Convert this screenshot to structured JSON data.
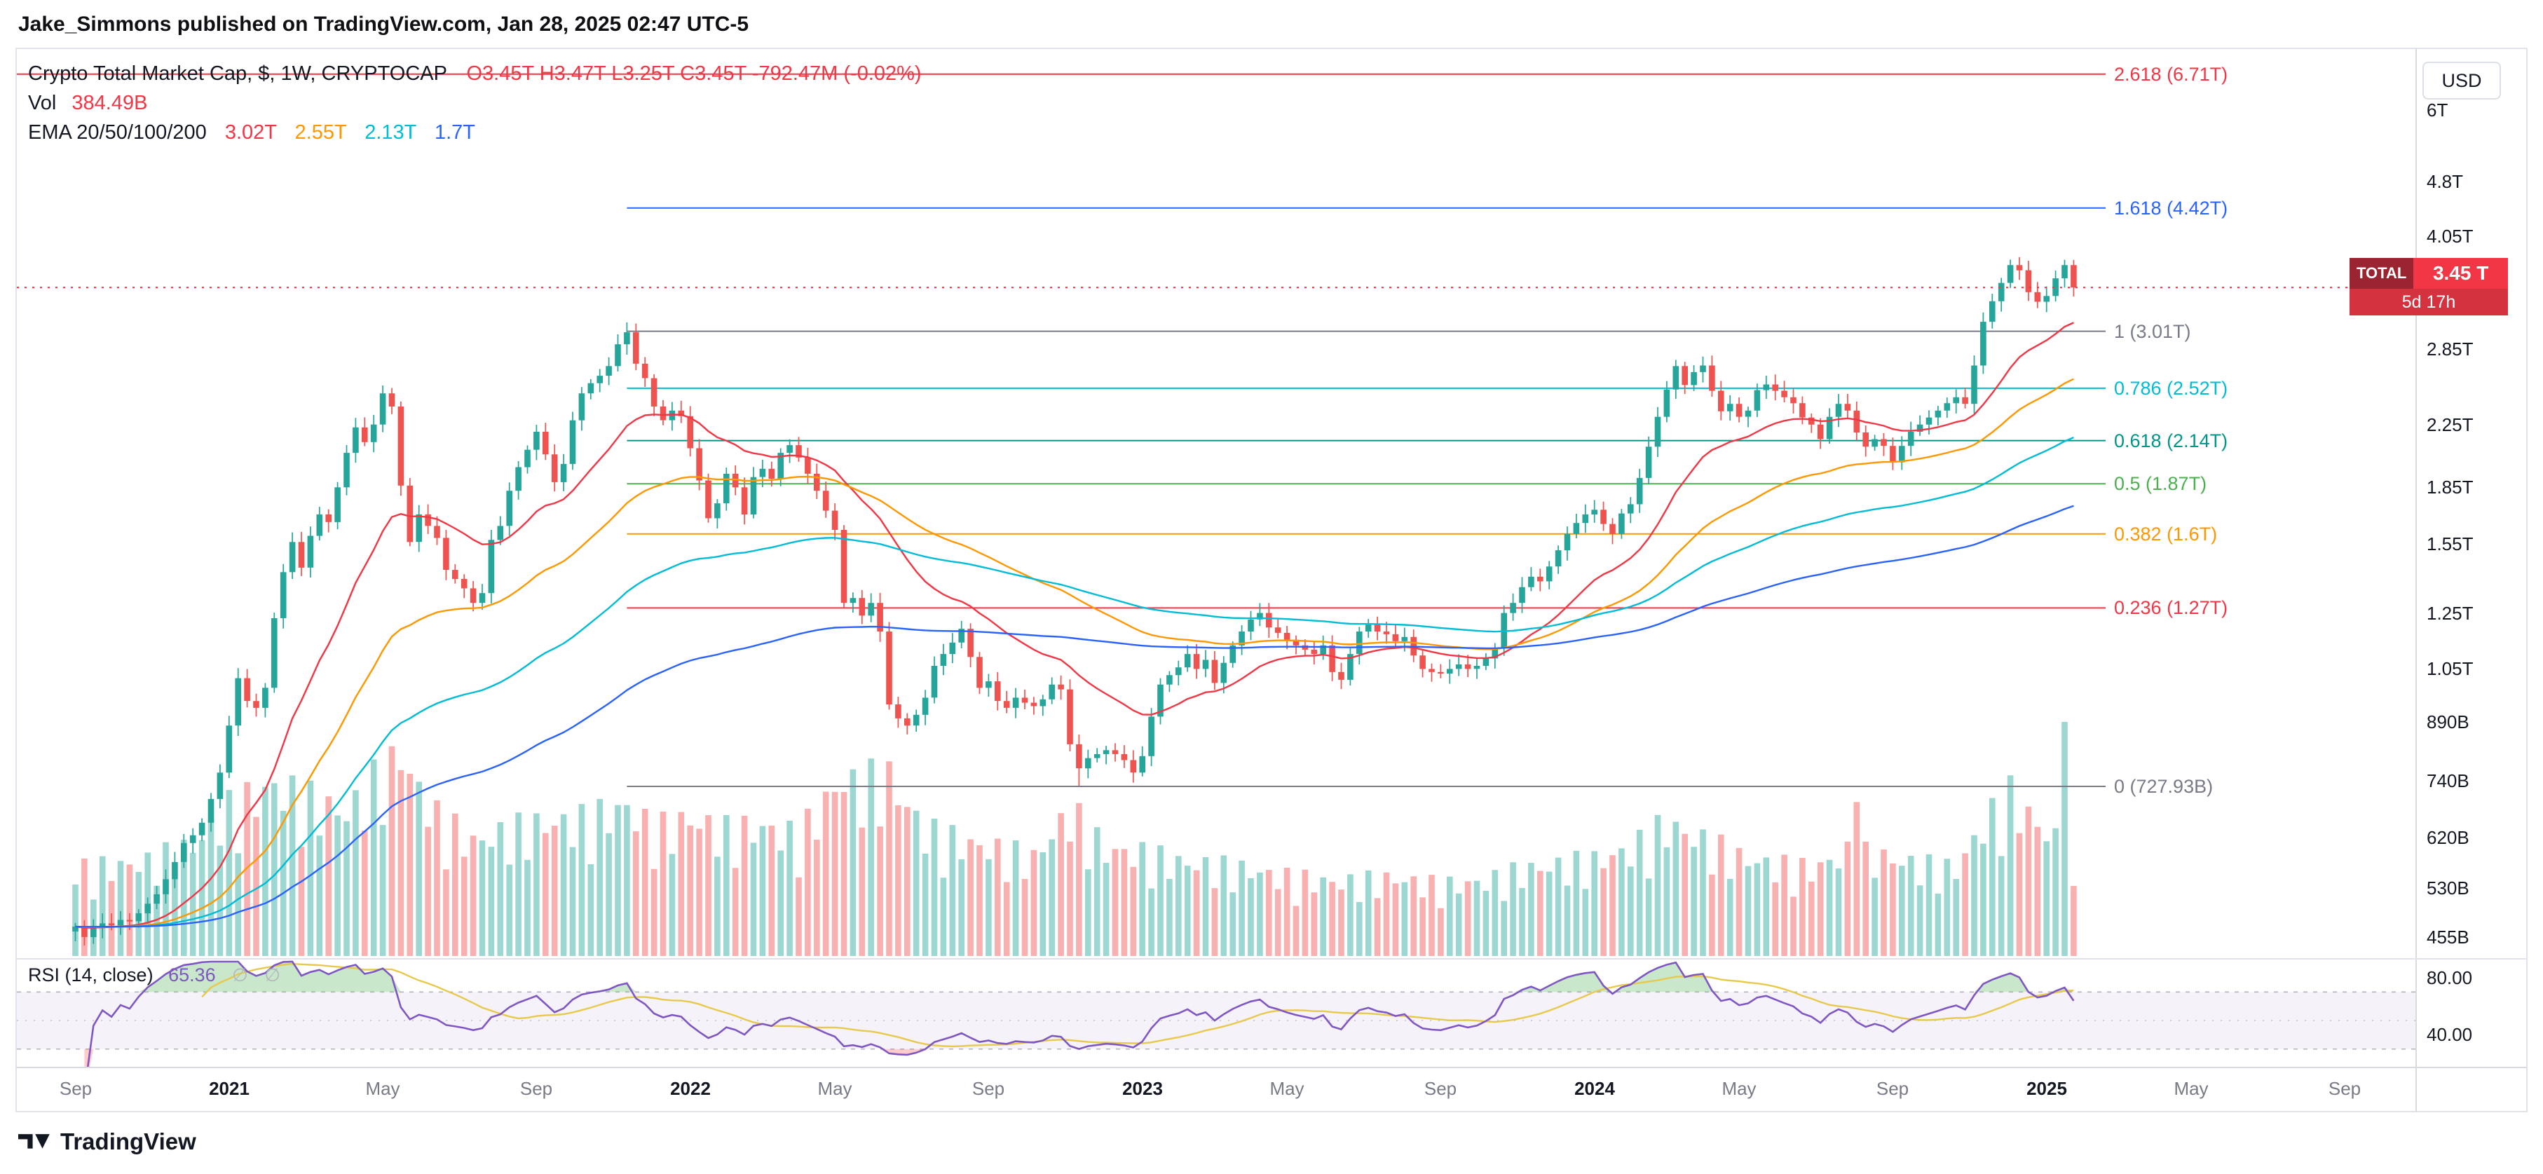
{
  "attribution": "Jake_Simmons published on TradingView.com, Jan 28, 2025 02:47 UTC-5",
  "legend": {
    "title": "Crypto Total Market Cap, $, 1W, CRYPTOCAP",
    "ohlc": "O3.45T  H3.47T  L3.25T  C3.45T  -792.47M (-0.02%)",
    "vol_label": "Vol",
    "vol_value": "384.49B",
    "ema_label": "EMA 20/50/100/200",
    "ema20": "3.02T",
    "ema50": "2.55T",
    "ema100": "2.13T",
    "ema200": "1.7T"
  },
  "rsi_legend": {
    "label": "RSI (14, close)",
    "value": "65.36",
    "icon": "∅"
  },
  "badge": {
    "symbol": "TOTAL",
    "price": "3.45 T",
    "countdown": "5d 17h"
  },
  "price_axis": {
    "currency": "USD"
  },
  "footer": {
    "brand": "TradingView"
  },
  "chart_data": {
    "type": "candlestick",
    "title": "Crypto Total Market Cap, $, 1W, CRYPTOCAP",
    "y_scale": "log",
    "unit": "USD billions",
    "closes": [
      470,
      455,
      468,
      475,
      472,
      480,
      478,
      490,
      505,
      520,
      545,
      575,
      610,
      625,
      650,
      700,
      760,
      880,
      1020,
      950,
      930,
      990,
      1230,
      1420,
      1560,
      1440,
      1590,
      1700,
      1660,
      1850,
      2060,
      2230,
      2130,
      2250,
      2480,
      2380,
      1860,
      1560,
      1700,
      1640,
      1580,
      1430,
      1390,
      1350,
      1290,
      1330,
      1570,
      1640,
      1830,
      1970,
      2080,
      2200,
      2050,
      1880,
      1990,
      2280,
      2480,
      2560,
      2620,
      2700,
      2890,
      3000,
      2720,
      2600,
      2380,
      2280,
      2350,
      2310,
      2090,
      1890,
      1680,
      1760,
      1930,
      1850,
      1700,
      1910,
      1960,
      1900,
      2060,
      2110,
      2030,
      1930,
      1830,
      1720,
      1620,
      1290,
      1310,
      1240,
      1290,
      1180,
      940,
      900,
      880,
      910,
      960,
      1060,
      1100,
      1140,
      1190,
      1090,
      990,
      1010,
      950,
      930,
      960,
      945,
      935,
      955,
      1000,
      985,
      830,
      770,
      795,
      805,
      815,
      805,
      790,
      760,
      800,
      905,
      1000,
      1030,
      1055,
      1100,
      1050,
      1080,
      1005,
      1070,
      1130,
      1180,
      1225,
      1250,
      1195,
      1175,
      1150,
      1130,
      1115,
      1100,
      1130,
      1040,
      1015,
      1100,
      1180,
      1205,
      1180,
      1170,
      1145,
      1160,
      1095,
      1050,
      1040,
      1035,
      1050,
      1065,
      1050,
      1060,
      1085,
      1120,
      1250,
      1290,
      1355,
      1400,
      1380,
      1445,
      1520,
      1600,
      1655,
      1700,
      1725,
      1650,
      1600,
      1705,
      1755,
      1905,
      2100,
      2305,
      2510,
      2700,
      2545,
      2650,
      2705,
      2500,
      2345,
      2400,
      2305,
      2350,
      2505,
      2550,
      2500,
      2450,
      2405,
      2300,
      2250,
      2150,
      2305,
      2400,
      2350,
      2195,
      2100,
      2150,
      2105,
      2000,
      2105,
      2200,
      2250,
      2300,
      2350,
      2405,
      2450,
      2400,
      2705,
      3100,
      3305,
      3500,
      3700,
      3640,
      3400,
      3300,
      3360,
      3550,
      3700,
      3450
    ],
    "volume_keyframes": [
      [
        0,
        420
      ],
      [
        8,
        460
      ],
      [
        13,
        540
      ],
      [
        17,
        720
      ],
      [
        22,
        830
      ],
      [
        26,
        760
      ],
      [
        30,
        700
      ],
      [
        34,
        900
      ],
      [
        36,
        960
      ],
      [
        40,
        680
      ],
      [
        44,
        560
      ],
      [
        48,
        610
      ],
      [
        52,
        650
      ],
      [
        56,
        660
      ],
      [
        61,
        730
      ],
      [
        64,
        610
      ],
      [
        68,
        670
      ],
      [
        72,
        610
      ],
      [
        76,
        630
      ],
      [
        80,
        580
      ],
      [
        84,
        820
      ],
      [
        90,
        870
      ],
      [
        94,
        610
      ],
      [
        98,
        560
      ],
      [
        102,
        520
      ],
      [
        106,
        480
      ],
      [
        110,
        710
      ],
      [
        114,
        520
      ],
      [
        118,
        500
      ],
      [
        122,
        460
      ],
      [
        126,
        440
      ],
      [
        130,
        420
      ],
      [
        134,
        385
      ],
      [
        140,
        360
      ],
      [
        146,
        380
      ],
      [
        151,
        345
      ],
      [
        156,
        365
      ],
      [
        160,
        420
      ],
      [
        164,
        445
      ],
      [
        168,
        465
      ],
      [
        172,
        520
      ],
      [
        176,
        645
      ],
      [
        180,
        565
      ],
      [
        184,
        485
      ],
      [
        188,
        445
      ],
      [
        192,
        425
      ],
      [
        196,
        505
      ],
      [
        200,
        485
      ],
      [
        204,
        445
      ],
      [
        208,
        425
      ],
      [
        211,
        645
      ],
      [
        214,
        785
      ],
      [
        217,
        645
      ],
      [
        221,
        500
      ]
    ],
    "volume_spikes": [
      [
        36,
        1020
      ],
      [
        85,
        900
      ],
      [
        197,
        845
      ],
      [
        220,
        1285
      ],
      [
        221,
        384.49
      ]
    ],
    "anchor_high": {
      "week": 61,
      "value": 3008
    },
    "anchor_low": {
      "week": 111,
      "value": 729
    },
    "ema_periods": [
      20,
      50,
      100,
      200
    ],
    "ema_colors": [
      "#f23645",
      "#ff9800",
      "#00bcd4",
      "#2962ff"
    ],
    "rsi_period": 14,
    "rsi_ma_period": 14,
    "rsi_value": 65.36,
    "current_price": 3450,
    "current_price_color": "#f23645",
    "candle_up_color": "#26a69a",
    "candle_down_color": "#ef5350",
    "rsi_color": "#7e57c2",
    "rsi_ma_color": "#e7c94c",
    "fib_levels": [
      {
        "label": "2.618 (6.71T)",
        "value": 6710,
        "color": "#f23645",
        "full": true
      },
      {
        "label": "1.618 (4.42T)",
        "value": 4420,
        "color": "#2962ff"
      },
      {
        "label": "1 (3.01T)",
        "value": 3010,
        "color": "#787b86"
      },
      {
        "label": "0.786 (2.52T)",
        "value": 2520,
        "color": "#00bcd4"
      },
      {
        "label": "0.618 (2.14T)",
        "value": 2140,
        "color": "#009688"
      },
      {
        "label": "0.5 (1.87T)",
        "value": 1870,
        "color": "#4caf50"
      },
      {
        "label": "0.382 (1.6T)",
        "value": 1600,
        "color": "#ff9800"
      },
      {
        "label": "0.236 (1.27T)",
        "value": 1270,
        "color": "#f23645"
      },
      {
        "label": "0 (727.93B)",
        "value": 727.93,
        "color": "#787b86"
      }
    ],
    "price_ticks": [
      {
        "label": "6T",
        "value": 6000
      },
      {
        "label": "4.8T",
        "value": 4800
      },
      {
        "label": "4.05T",
        "value": 4050
      },
      {
        "label": "2.85T",
        "value": 2850
      },
      {
        "label": "2.25T",
        "value": 2250
      },
      {
        "label": "1.85T",
        "value": 1850
      },
      {
        "label": "1.55T",
        "value": 1550
      },
      {
        "label": "1.25T",
        "value": 1250
      },
      {
        "label": "1.05T",
        "value": 1050
      },
      {
        "label": "890B",
        "value": 890
      },
      {
        "label": "740B",
        "value": 740
      },
      {
        "label": "620B",
        "value": 620
      },
      {
        "label": "530B",
        "value": 530
      },
      {
        "label": "455B",
        "value": 455
      }
    ],
    "rsi_ticks": [
      {
        "label": "80.00",
        "value": 80
      },
      {
        "label": "40.00",
        "value": 40
      }
    ],
    "time_ticks": [
      {
        "label": "Sep",
        "week": 0
      },
      {
        "label": "2021",
        "week": 17,
        "major": true
      },
      {
        "label": "May",
        "week": 34
      },
      {
        "label": "Sep",
        "week": 51
      },
      {
        "label": "2022",
        "week": 68,
        "major": true
      },
      {
        "label": "May",
        "week": 84
      },
      {
        "label": "Sep",
        "week": 101
      },
      {
        "label": "2023",
        "week": 118,
        "major": true
      },
      {
        "label": "May",
        "week": 134
      },
      {
        "label": "Sep",
        "week": 151
      },
      {
        "label": "2024",
        "week": 168,
        "major": true
      },
      {
        "label": "May",
        "week": 184
      },
      {
        "label": "Sep",
        "week": 201
      },
      {
        "label": "2025",
        "week": 218,
        "major": true
      },
      {
        "label": "May",
        "week": 234
      },
      {
        "label": "Sep",
        "week": 251
      }
    ]
  }
}
